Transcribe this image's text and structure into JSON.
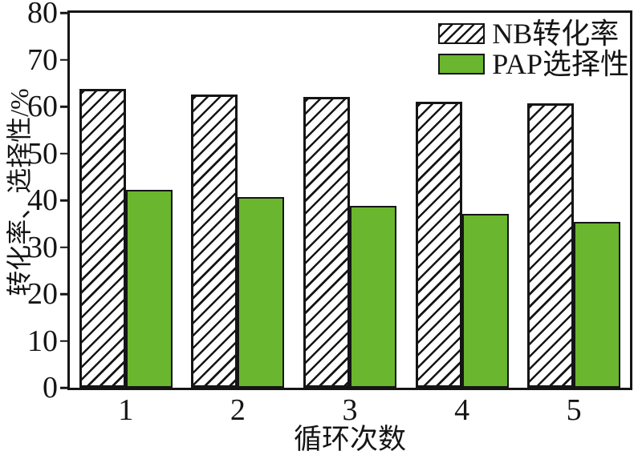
{
  "chart_data": {
    "type": "bar",
    "title": "",
    "xlabel": "循环次数",
    "ylabel": "转化率、选择性/%",
    "categories": [
      "1",
      "2",
      "3",
      "4",
      "5"
    ],
    "series": [
      {
        "name": "NB转化率",
        "style": "hatched",
        "values": [
          63.7,
          62.5,
          62.0,
          61.0,
          60.7
        ]
      },
      {
        "name": "PAP选择性",
        "style": "solid",
        "values": [
          42.3,
          40.7,
          38.8,
          37.1,
          35.4
        ]
      }
    ],
    "ylim": [
      0,
      80
    ],
    "yticks": [
      0,
      10,
      20,
      30,
      40,
      50,
      60,
      70,
      80
    ],
    "grid": false,
    "legend_position": "top-right",
    "colors": {
      "bar_green": "#6ab62e",
      "axis": "#151515",
      "background": "#ffffff"
    }
  }
}
